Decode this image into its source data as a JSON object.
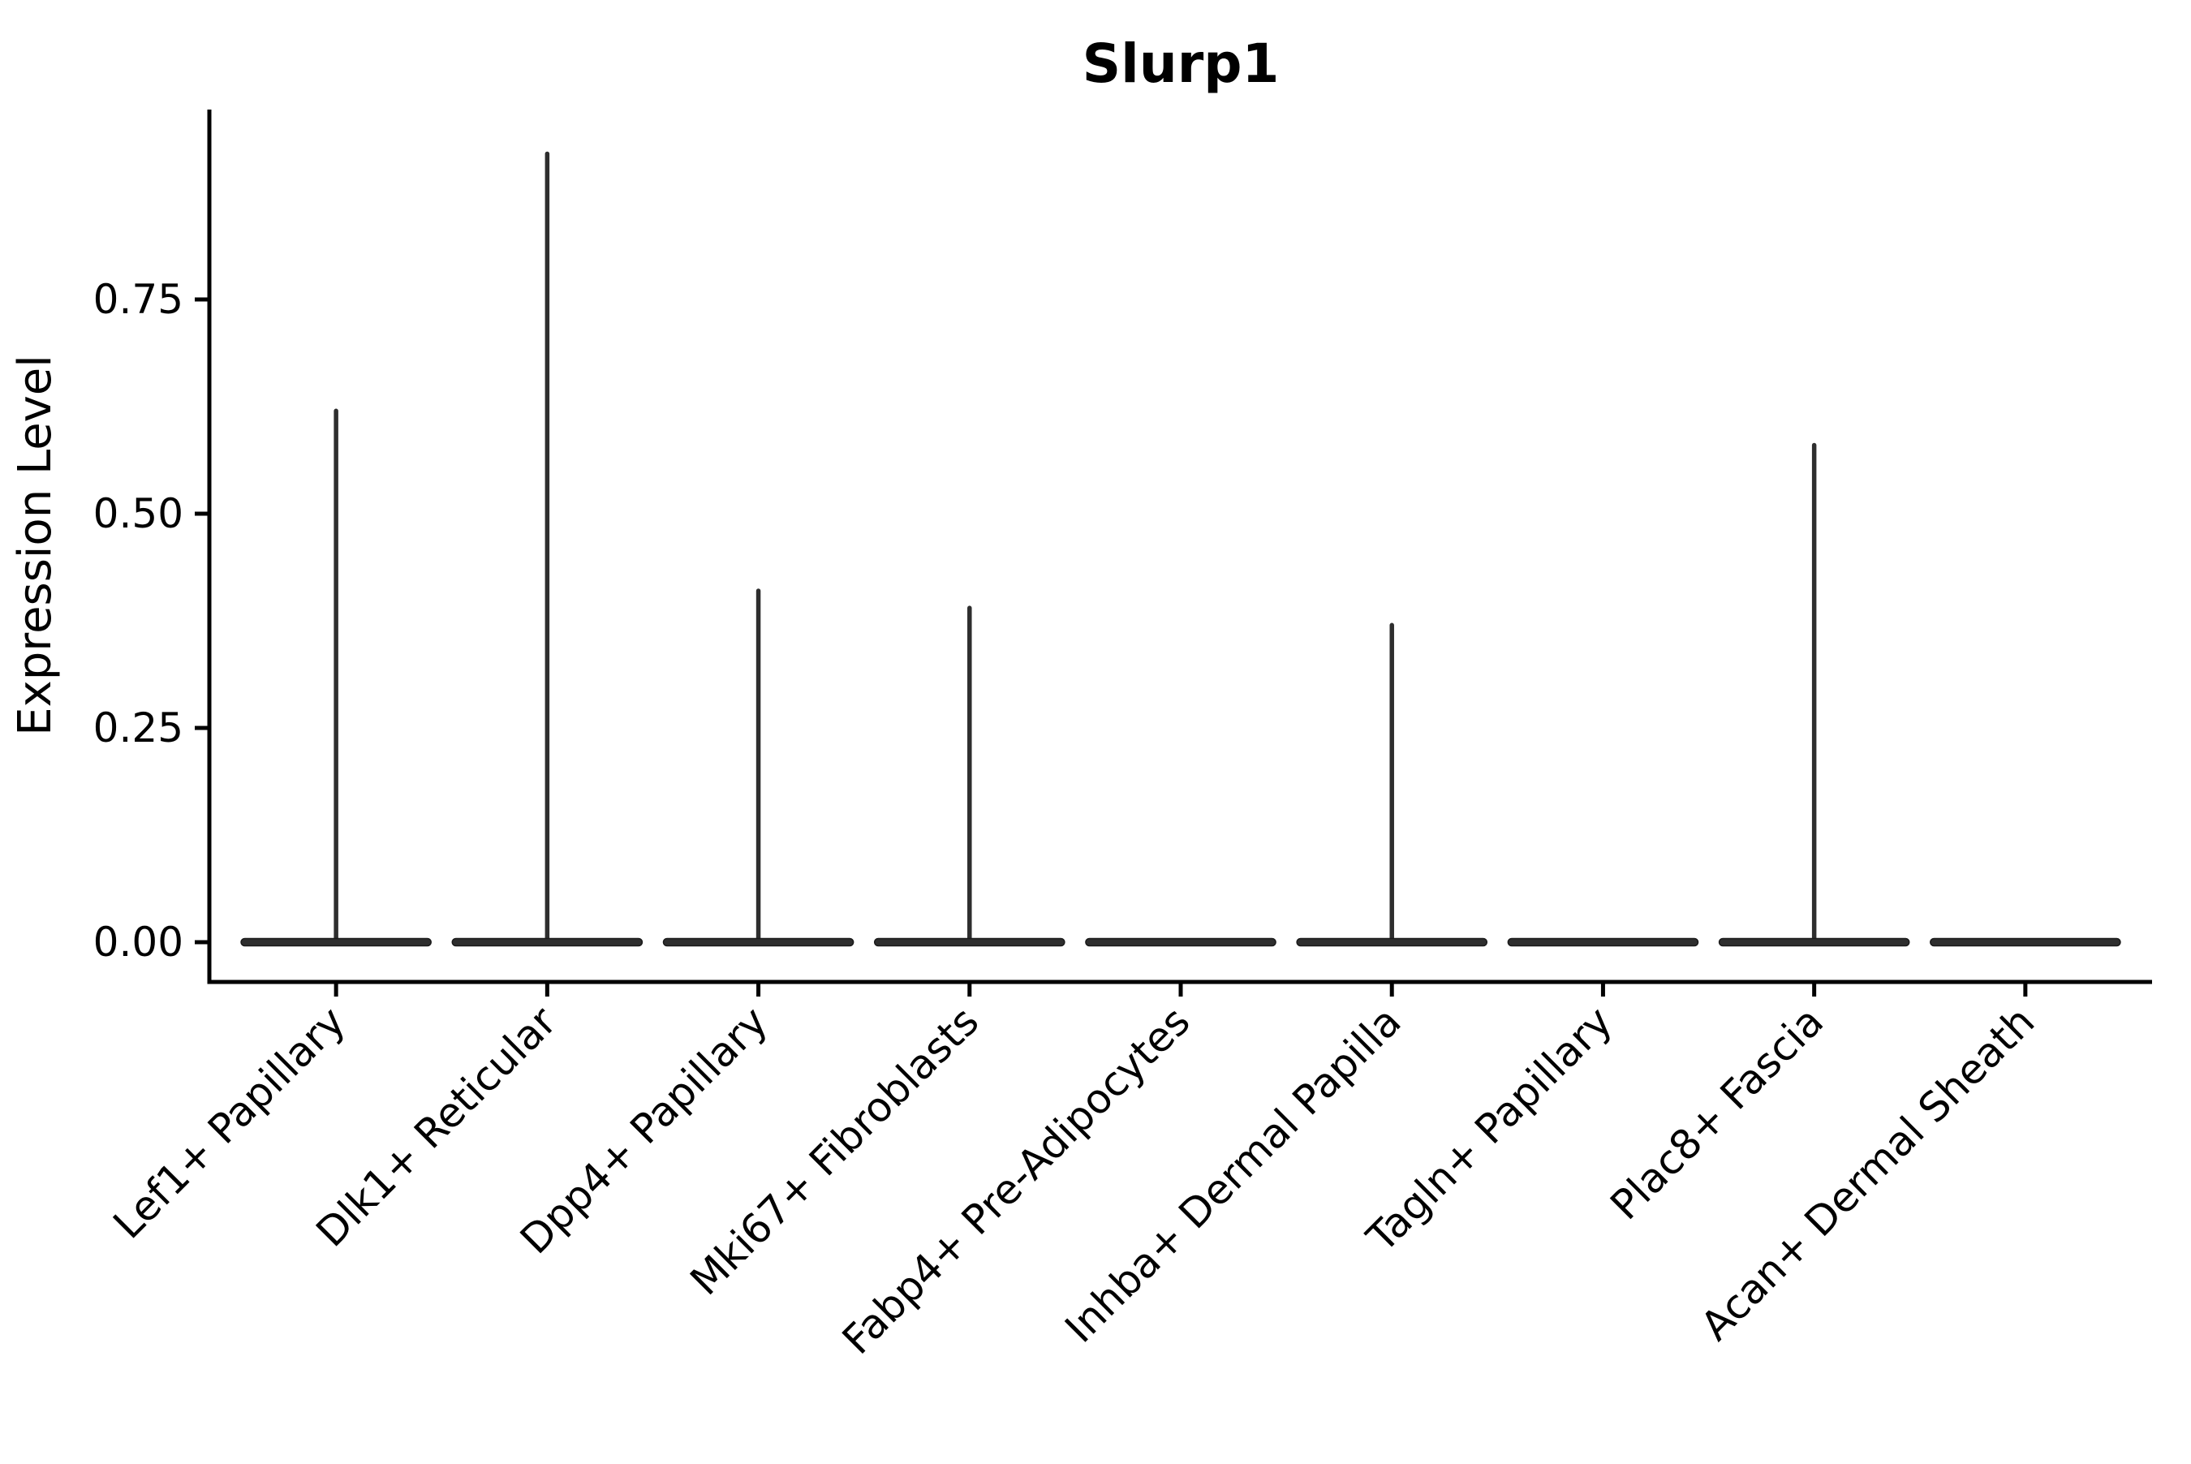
{
  "chart_data": {
    "type": "violin",
    "title": "Slurp1",
    "xlabel": "",
    "ylabel": "Expression Level",
    "categories": [
      "Lef1+ Papillary",
      "Dlk1+ Reticular",
      "Dpp4+ Papillary",
      "Mki67+ Fibroblasts",
      "Fabp4+ Pre-Adipocytes",
      "Inhba+ Dermal Papilla",
      "Tagln+ Papillary",
      "Plac8+ Fascia",
      "Acan+ Dermal Sheath"
    ],
    "spike_max_values": [
      0.62,
      0.92,
      0.41,
      0.39,
      0,
      0.37,
      0,
      0.58,
      0
    ],
    "baseline_value": 0.0,
    "ytick_labels": [
      "0.00",
      "0.25",
      "0.50",
      "0.75"
    ],
    "ytick_values": [
      0.0,
      0.25,
      0.5,
      0.75
    ],
    "ylim": [
      0,
      0.97
    ],
    "grid": "off",
    "legend": "none",
    "violin_color": "#2e2e2e",
    "violin_outline_color": "#1a1a1a",
    "axis_color": "#000000"
  }
}
